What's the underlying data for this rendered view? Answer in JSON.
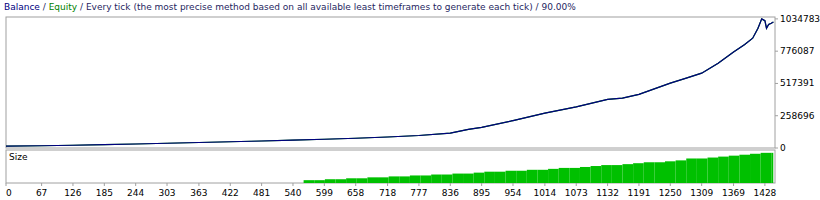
{
  "chart_data": [
    {
      "type": "line",
      "separator": "/",
      "subtitle": "Every tick (the most precise method based on all available least timeframes to generate each tick) / 90.00%",
      "x": [
        0,
        67,
        126,
        185,
        244,
        303,
        363,
        422,
        481,
        540,
        599,
        658,
        718,
        777,
        836,
        870,
        895,
        954,
        1014,
        1073,
        1132,
        1160,
        1191,
        1250,
        1280,
        1309,
        1340,
        1369,
        1390,
        1405,
        1415,
        1422,
        1428,
        1431,
        1435,
        1440,
        1444
      ],
      "series": [
        {
          "name": "Balance",
          "color": "#000080",
          "values": [
            15000,
            18000,
            22000,
            27000,
            32000,
            38000,
            44000,
            50000,
            56000,
            63000,
            70000,
            78000,
            88000,
            100000,
            120000,
            150000,
            165000,
            220000,
            280000,
            330000,
            390000,
            400000,
            430000,
            520000,
            560000,
            600000,
            680000,
            770000,
            830000,
            880000,
            960000,
            1034783,
            1020000,
            960000,
            990000,
            1000000,
            1010000
          ]
        },
        {
          "name": "Equity",
          "color": "#008000",
          "values": [
            15000,
            18000,
            22000,
            27000,
            32000,
            38000,
            44000,
            50000,
            56000,
            63000,
            70000,
            78000,
            88000,
            100000,
            120000,
            150000,
            165000,
            220000,
            280000,
            330000,
            390000,
            400000,
            430000,
            520000,
            560000,
            600000,
            680000,
            770000,
            830000,
            880000,
            960000,
            1034783,
            1020000,
            960000,
            990000,
            1000000,
            1010000
          ]
        }
      ],
      "xlim": [
        0,
        1447
      ],
      "ylim": [
        0,
        1050000
      ],
      "yticks": [
        0,
        258696,
        517391,
        776087,
        1034783
      ],
      "tick_labels": "y"
    },
    {
      "type": "bar",
      "title": "Size",
      "x": [
        560,
        580,
        600,
        620,
        640,
        660,
        680,
        700,
        720,
        740,
        760,
        780,
        800,
        820,
        840,
        860,
        880,
        900,
        920,
        940,
        960,
        980,
        1000,
        1020,
        1040,
        1060,
        1080,
        1100,
        1120,
        1140,
        1160,
        1180,
        1200,
        1220,
        1240,
        1260,
        1280,
        1300,
        1320,
        1340,
        1360,
        1380,
        1400,
        1420,
        1440
      ],
      "values": [
        3,
        3,
        4,
        4,
        5,
        5,
        6,
        6,
        7,
        7,
        8,
        8,
        9,
        9,
        10,
        10,
        11,
        12,
        12,
        13,
        13,
        14,
        14,
        15,
        16,
        16,
        17,
        18,
        19,
        19,
        20,
        21,
        22,
        22,
        23,
        24,
        26,
        26,
        27,
        28,
        29,
        30,
        31,
        32,
        32
      ],
      "color": "#00c000",
      "xlim": [
        0,
        1447
      ],
      "xticks": [
        0,
        67,
        126,
        185,
        244,
        303,
        363,
        422,
        481,
        540,
        599,
        658,
        718,
        777,
        836,
        895,
        954,
        1014,
        1073,
        1132,
        1191,
        1250,
        1309,
        1369,
        1428
      ],
      "ylim": [
        0,
        35
      ],
      "tick_labels": "x"
    }
  ]
}
